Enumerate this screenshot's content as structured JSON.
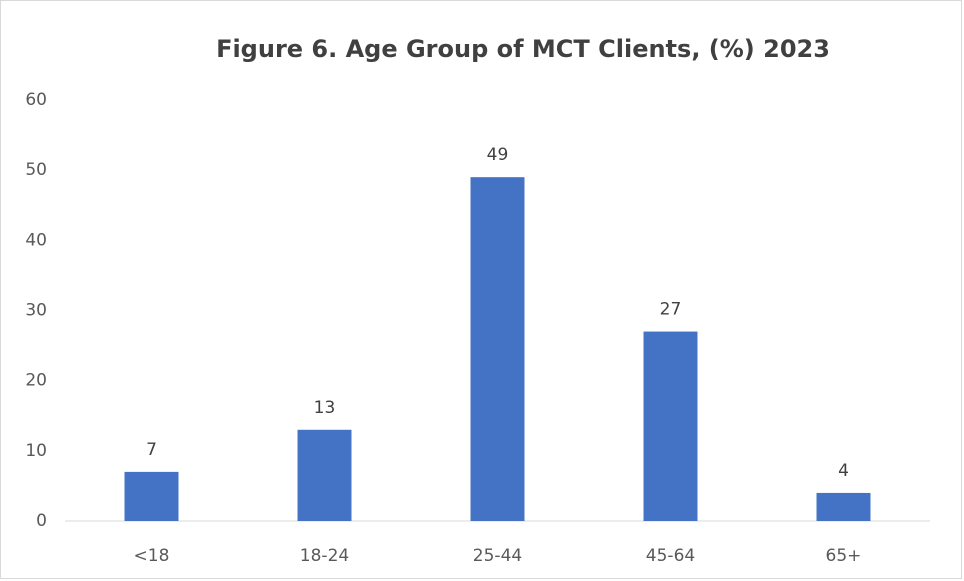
{
  "chart_data": {
    "type": "bar",
    "title": "Figure 6. Age Group of MCT Clients, (%) 2023",
    "categories": [
      "<18",
      "18-24",
      "25-44",
      "45-64",
      "65+"
    ],
    "values": [
      7,
      13,
      49,
      27,
      4
    ],
    "color": "#4472c4",
    "ylim": [
      0,
      60
    ],
    "yticks": [
      0,
      10,
      20,
      30,
      40,
      50,
      60
    ],
    "grid": false
  }
}
